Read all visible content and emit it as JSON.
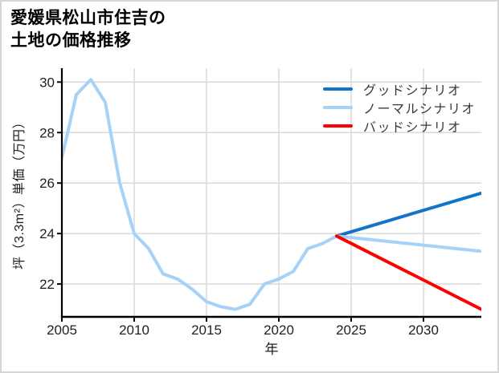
{
  "chart_data": {
    "type": "line",
    "title_lines": [
      "愛媛県松山市住吉の",
      "土地の価格推移"
    ],
    "xlabel": "年",
    "ylabel": "坪（3.3m²）単価（万円）",
    "xlim": [
      2005,
      2034
    ],
    "ylim": [
      20.7,
      30.55
    ],
    "x_ticks": [
      2005,
      2010,
      2015,
      2020,
      2025,
      2030
    ],
    "y_ticks": [
      22,
      24,
      26,
      28,
      30
    ],
    "grid": true,
    "legend_position": "upper right",
    "colors": {
      "history": "#a6d2f7",
      "good": "#1173c9",
      "normal": "#a6d2f7",
      "bad": "#ff0000",
      "gridline": "#d9d9d9",
      "axis": "#000000"
    },
    "series": [
      {
        "id": "history",
        "in_legend": false,
        "color": "#a6d2f7",
        "x": [
          2005,
          2006,
          2007,
          2008,
          2009,
          2010,
          2011,
          2012,
          2013,
          2014,
          2015,
          2016,
          2017,
          2018,
          2019,
          2020,
          2021,
          2022,
          2023,
          2024
        ],
        "values": [
          27.0,
          29.5,
          30.1,
          29.2,
          26.0,
          24.0,
          23.4,
          22.4,
          22.2,
          21.8,
          21.3,
          21.1,
          21.0,
          21.2,
          22.0,
          22.2,
          22.5,
          23.4,
          23.6,
          23.9
        ]
      },
      {
        "id": "good",
        "in_legend": true,
        "color": "#1173c9",
        "x": [
          2024,
          2034
        ],
        "values": [
          23.9,
          25.6
        ]
      },
      {
        "id": "normal",
        "in_legend": true,
        "color": "#a6d2f7",
        "x": [
          2024,
          2034
        ],
        "values": [
          23.9,
          23.3
        ]
      },
      {
        "id": "bad",
        "in_legend": true,
        "color": "#ff0000",
        "x": [
          2024,
          2034
        ],
        "values": [
          23.9,
          21.0
        ]
      }
    ],
    "legend": [
      {
        "label": "グッドシナリオ",
        "color": "#1173c9"
      },
      {
        "label": "ノーマルシナリオ",
        "color": "#a6d2f7"
      },
      {
        "label": "バッドシナリオ",
        "color": "#ff0000"
      }
    ]
  }
}
